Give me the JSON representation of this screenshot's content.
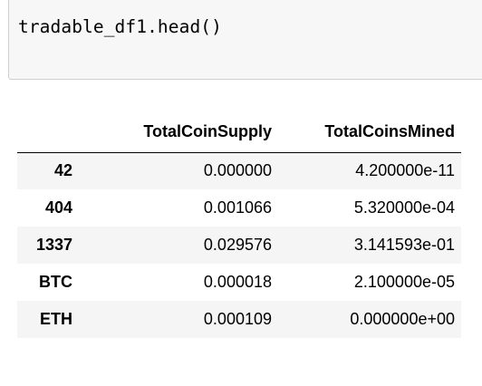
{
  "cell": {
    "code": "tradable_df1.head()"
  },
  "dataframe": {
    "columns": [
      "TotalCoinSupply",
      "TotalCoinsMined"
    ],
    "rows": [
      {
        "index": "42",
        "values": [
          "0.000000",
          "4.200000e-11"
        ]
      },
      {
        "index": "404",
        "values": [
          "0.001066",
          "5.320000e-04"
        ]
      },
      {
        "index": "1337",
        "values": [
          "0.029576",
          "3.141593e-01"
        ]
      },
      {
        "index": "BTC",
        "values": [
          "0.000018",
          "2.100000e-05"
        ]
      },
      {
        "index": "ETH",
        "values": [
          "0.000109",
          "0.000000e+00"
        ]
      }
    ]
  }
}
